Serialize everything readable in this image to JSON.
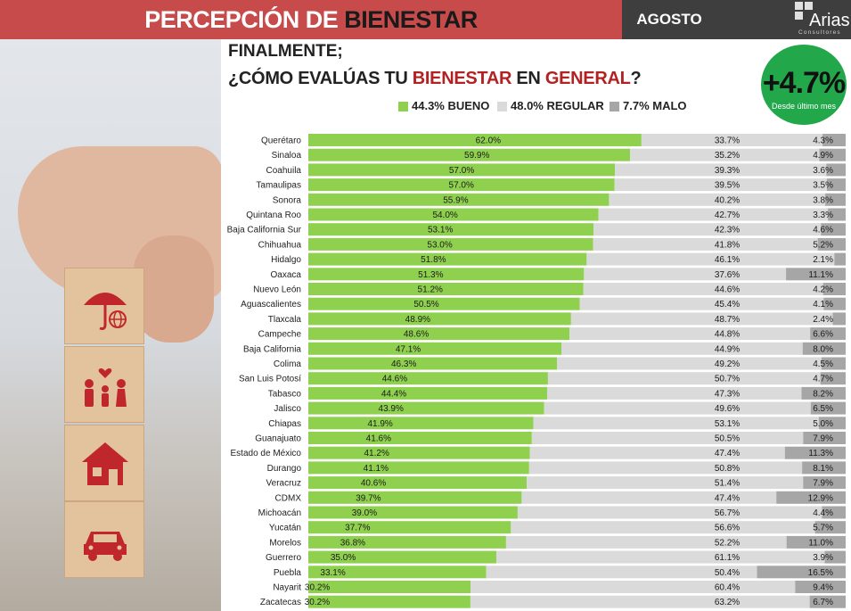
{
  "header": {
    "title_part1": "PERCEPCIÓN DE ",
    "title_part2": "BIENESTAR",
    "date": "AGOSTO 2021",
    "logo_text": "Arias",
    "logo_sub": "Consultores",
    "colors": {
      "primary": "#c84b4b",
      "dark": "#3e3e3e"
    }
  },
  "question": {
    "line1": "FINALMENTE;",
    "line2_a": "¿CÓMO EVALÚAS TU ",
    "line2_b": "BIENESTAR",
    "line2_c": " EN ",
    "line2_d": "GENERAL",
    "line2_e": "?"
  },
  "badge": {
    "value": "+4.7%",
    "sub": "Desde último mes",
    "color": "#22a84b"
  },
  "legend": [
    {
      "label": "44.3% BUENO",
      "color": "#8fd14f"
    },
    {
      "label": "48.0% REGULAR",
      "color": "#dadada"
    },
    {
      "label": "7.7% MALO",
      "color": "#a6a6a6"
    }
  ],
  "chart_data": {
    "type": "bar",
    "orientation": "horizontal",
    "stacked": true,
    "categories": [
      "Querétaro",
      "Sinaloa",
      "Coahuila",
      "Tamaulipas",
      "Sonora",
      "Quintana Roo",
      "Baja California Sur",
      "Chihuahua",
      "Hidalgo",
      "Oaxaca",
      "Nuevo León",
      "Aguascalientes",
      "Tlaxcala",
      "Campeche",
      "Baja California",
      "Colima",
      "San Luis Potosí",
      "Tabasco",
      "Jalisco",
      "Chiapas",
      "Guanajuato",
      "Estado de México",
      "Durango",
      "Veracruz",
      "CDMX",
      "Michoacán",
      "Yucatán",
      "Morelos",
      "Guerrero",
      "Puebla",
      "Nayarit",
      "Zacatecas"
    ],
    "series": [
      {
        "name": "BUENO",
        "color": "#8fd14f",
        "values": [
          62.0,
          59.9,
          57.0,
          57.0,
          55.9,
          54.0,
          53.1,
          53.0,
          51.8,
          51.3,
          51.2,
          50.5,
          48.9,
          48.6,
          47.1,
          46.3,
          44.6,
          44.4,
          43.9,
          41.9,
          41.6,
          41.2,
          41.1,
          40.6,
          39.7,
          39.0,
          37.7,
          36.8,
          35.0,
          33.1,
          30.2,
          30.2
        ],
        "labels": [
          "62.0%",
          "59.9%",
          "57.0%",
          "57.0%",
          "55.9%",
          "54.0%",
          "53.1%",
          "53.0%",
          "51.8%",
          "51.3%",
          "51.2%",
          "50.5%",
          "48.9%",
          "48.6%",
          "47.1%",
          "46.3%",
          "44.6%",
          "44.4%",
          "43.9%",
          "41.9%",
          "41.6%",
          "41.2%",
          "41.1%",
          "40.6%",
          "39.7%",
          "39.0%",
          "37.7%",
          "36.8%",
          "35.0%",
          "33.1%",
          "30.2%",
          "30.2%"
        ]
      },
      {
        "name": "REGULAR",
        "color": "#dadada",
        "values": [
          33.7,
          35.2,
          39.3,
          39.5,
          40.2,
          42.7,
          42.3,
          41.8,
          46.1,
          37.6,
          44.6,
          45.4,
          48.7,
          44.8,
          44.9,
          49.2,
          50.7,
          47.3,
          49.6,
          53.1,
          50.5,
          47.4,
          50.8,
          51.4,
          47.4,
          56.7,
          56.6,
          52.2,
          61.1,
          50.4,
          60.4,
          63.2
        ],
        "labels": [
          "33.7%",
          "35.2%",
          "39.3%",
          "39.5%",
          "40.2%",
          "42.7%",
          "42.3%",
          "41.8%",
          "46.1%",
          "37.6%",
          "44.6%",
          "45.4%",
          "48.7%",
          "44.8%",
          "44.9%",
          "49.2%",
          "50.7%",
          "47.3%",
          "49.6%",
          "53.1%",
          "50.5%",
          "47.4%",
          "50.8%",
          "51.4%",
          "47.4%",
          "56.7%",
          "56.6%",
          "52.2%",
          "61.1%",
          "50.4%",
          "60.4%",
          "63.2%"
        ]
      },
      {
        "name": "MALO",
        "color": "#a6a6a6",
        "values": [
          4.3,
          4.9,
          3.6,
          3.5,
          3.8,
          3.3,
          4.6,
          5.2,
          2.1,
          11.1,
          4.2,
          4.1,
          2.4,
          6.6,
          8.0,
          4.5,
          4.7,
          8.2,
          6.5,
          5.0,
          7.9,
          11.3,
          8.1,
          7.9,
          12.9,
          4.4,
          5.7,
          11.0,
          3.9,
          16.5,
          9.4,
          6.7
        ],
        "labels": [
          "4.3%",
          "4.9%",
          "3.6%",
          "3.5%",
          "3.8%",
          "3.3%",
          "4.6%",
          "5.2%",
          "2.1%",
          "11.1%",
          "4.2%",
          "4.1%",
          "2.4%",
          "6.6%",
          "8.0%",
          "4.5%",
          "4.7%",
          "8.2%",
          "6.5%",
          "5.0%",
          "7.9%",
          "11.3%",
          "8.1%",
          "7.9%",
          "12.9%",
          "4.4%",
          "5.7%",
          "11.0%",
          "3.9%",
          "16.5%",
          "9.4%",
          "6.7%"
        ]
      }
    ],
    "xlim": [
      0,
      100
    ],
    "grid": false
  }
}
